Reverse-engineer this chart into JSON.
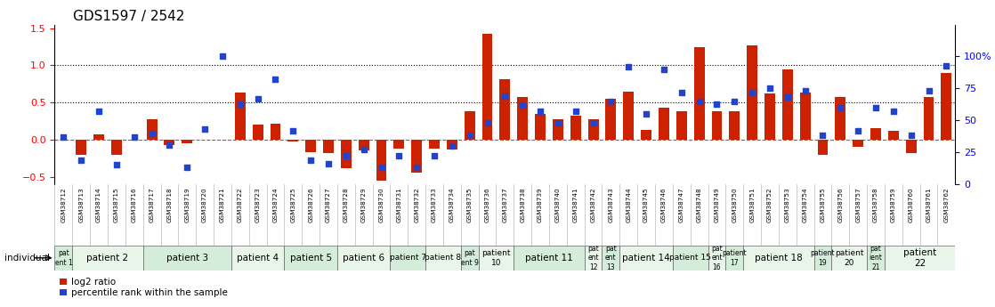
{
  "title": "GDS1597 / 2542",
  "gsm_labels": [
    "GSM38712",
    "GSM38713",
    "GSM38714",
    "GSM38715",
    "GSM38716",
    "GSM38717",
    "GSM38718",
    "GSM38719",
    "GSM38720",
    "GSM38721",
    "GSM38722",
    "GSM38723",
    "GSM38724",
    "GSM38725",
    "GSM38726",
    "GSM38727",
    "GSM38728",
    "GSM38729",
    "GSM38730",
    "GSM38731",
    "GSM38732",
    "GSM38733",
    "GSM38734",
    "GSM38735",
    "GSM38736",
    "GSM38737",
    "GSM38738",
    "GSM38739",
    "GSM38740",
    "GSM38741",
    "GSM38742",
    "GSM38743",
    "GSM38744",
    "GSM38745",
    "GSM38746",
    "GSM38747",
    "GSM38748",
    "GSM38749",
    "GSM38750",
    "GSM38751",
    "GSM38752",
    "GSM38753",
    "GSM38754",
    "GSM38755",
    "GSM38756",
    "GSM38757",
    "GSM38758",
    "GSM38759",
    "GSM38760",
    "GSM38761",
    "GSM38762"
  ],
  "log2_ratio": [
    0.0,
    -0.2,
    0.07,
    -0.2,
    0.0,
    0.27,
    -0.07,
    -0.05,
    0.0,
    0.0,
    0.63,
    0.2,
    0.22,
    -0.02,
    -0.17,
    -0.18,
    -0.38,
    -0.15,
    -0.55,
    -0.12,
    -0.45,
    -0.12,
    -0.13,
    0.38,
    1.43,
    0.82,
    0.57,
    0.35,
    0.28,
    0.32,
    0.28,
    0.55,
    0.65,
    0.13,
    0.43,
    0.38,
    1.25,
    0.38,
    0.38,
    1.27,
    0.62,
    0.95,
    0.63,
    -0.2,
    0.57,
    -0.1,
    0.15,
    0.12,
    -0.18,
    0.57,
    0.9
  ],
  "percentile": [
    37,
    19,
    57,
    15,
    37,
    40,
    31,
    13,
    43,
    100,
    63,
    67,
    82,
    42,
    19,
    16,
    22,
    27,
    13,
    22,
    13,
    22,
    30,
    38,
    48,
    69,
    62,
    57,
    48,
    57,
    48,
    65,
    92,
    55,
    90,
    72,
    65,
    63,
    65,
    72,
    75,
    68,
    73,
    38,
    60,
    42,
    60,
    57,
    38,
    73,
    93
  ],
  "patients": [
    {
      "label": "pat\nent 1",
      "start": 0,
      "end": 1,
      "color": "#d4edda"
    },
    {
      "label": "patient 2",
      "start": 1,
      "end": 5,
      "color": "#eaf5ea"
    },
    {
      "label": "patient 3",
      "start": 5,
      "end": 10,
      "color": "#d4edda"
    },
    {
      "label": "patient 4",
      "start": 10,
      "end": 13,
      "color": "#eaf5ea"
    },
    {
      "label": "patient 5",
      "start": 13,
      "end": 16,
      "color": "#d4edda"
    },
    {
      "label": "patient 6",
      "start": 16,
      "end": 19,
      "color": "#eaf5ea"
    },
    {
      "label": "patient 7",
      "start": 19,
      "end": 21,
      "color": "#d4edda"
    },
    {
      "label": "patient 8",
      "start": 21,
      "end": 23,
      "color": "#eaf5ea"
    },
    {
      "label": "pat\nent 9",
      "start": 23,
      "end": 24,
      "color": "#d4edda"
    },
    {
      "label": "patient\n10",
      "start": 24,
      "end": 26,
      "color": "#eaf5ea"
    },
    {
      "label": "patient 11",
      "start": 26,
      "end": 30,
      "color": "#d4edda"
    },
    {
      "label": "pat\nent\n12",
      "start": 30,
      "end": 31,
      "color": "#eaf5ea"
    },
    {
      "label": "pat\nent\n13",
      "start": 31,
      "end": 32,
      "color": "#d4edda"
    },
    {
      "label": "patient 14",
      "start": 32,
      "end": 35,
      "color": "#eaf5ea"
    },
    {
      "label": "patient 15",
      "start": 35,
      "end": 37,
      "color": "#d4edda"
    },
    {
      "label": "pat\nent\n16",
      "start": 37,
      "end": 38,
      "color": "#eaf5ea"
    },
    {
      "label": "patient\n17",
      "start": 38,
      "end": 39,
      "color": "#d4edda"
    },
    {
      "label": "patient 18",
      "start": 39,
      "end": 43,
      "color": "#eaf5ea"
    },
    {
      "label": "patient\n19",
      "start": 43,
      "end": 44,
      "color": "#d4edda"
    },
    {
      "label": "patient\n20",
      "start": 44,
      "end": 46,
      "color": "#eaf5ea"
    },
    {
      "label": "pat\nient\n21",
      "start": 46,
      "end": 47,
      "color": "#d4edda"
    },
    {
      "label": "patient\n22",
      "start": 47,
      "end": 51,
      "color": "#eaf5ea"
    }
  ],
  "bar_color": "#cc2200",
  "dot_color": "#2244cc",
  "ylim_left": [
    -0.6,
    1.55
  ],
  "ylim_right": [
    0,
    125
  ],
  "right_ticks": [
    0,
    25,
    50,
    75,
    100
  ],
  "right_tick_labels": [
    "0",
    "25",
    "50",
    "75",
    "100%"
  ],
  "left_ticks": [
    -0.5,
    0.0,
    0.5,
    1.0,
    1.5
  ],
  "title_fontsize": 11,
  "bg_color": "#ffffff"
}
